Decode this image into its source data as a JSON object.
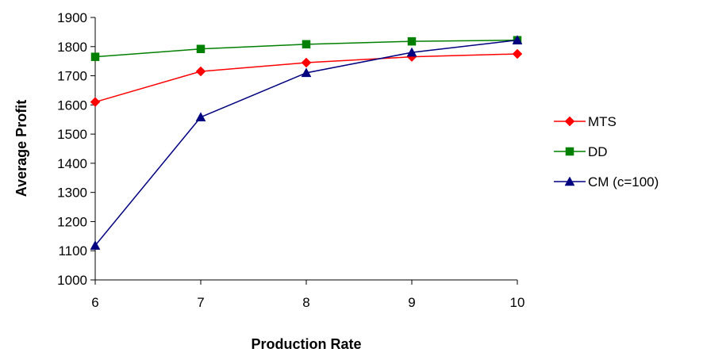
{
  "chart_data": {
    "type": "line",
    "title": "",
    "xlabel": "Production Rate",
    "ylabel": "Average Profit",
    "x": [
      6,
      7,
      8,
      9,
      10
    ],
    "xlim": [
      6,
      10
    ],
    "ylim": [
      1000,
      1900
    ],
    "x_ticks": [
      "6",
      "7",
      "8",
      "9",
      "10"
    ],
    "y_ticks": [
      "1000",
      "1100",
      "1200",
      "1300",
      "1400",
      "1500",
      "1600",
      "1700",
      "1800",
      "1900"
    ],
    "grid": false,
    "legend_position": "right",
    "series": [
      {
        "name": "MTS",
        "values": [
          1610,
          1715,
          1745,
          1765,
          1775
        ],
        "color": "#ff0000",
        "marker": "diamond"
      },
      {
        "name": "DD",
        "values": [
          1765,
          1792,
          1808,
          1818,
          1822
        ],
        "color": "#008000",
        "marker": "square"
      },
      {
        "name": "CM (c=100)",
        "values": [
          1118,
          1558,
          1710,
          1780,
          1822
        ],
        "color": "#000080",
        "marker": "triangle"
      }
    ]
  }
}
